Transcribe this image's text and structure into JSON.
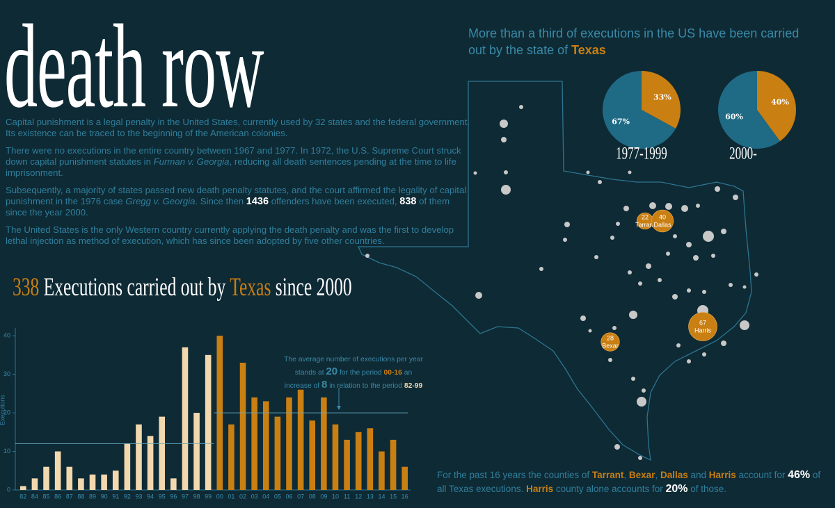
{
  "header": {
    "title": "death row"
  },
  "intro": [
    [
      {
        "t": "Capital punishment is a legal penalty in the United States, currently used by 32 states and the federal government. Its existence can be traced to the beginning of the American colonies.",
        "s": "plain"
      }
    ],
    [
      {
        "t": "There were no executions in the entire country between 1967 and 1977. In 1972, the U.S. Supreme Court struck down capital punishment statutes in ",
        "s": "plain"
      },
      {
        "t": "Furman v. Georgia",
        "s": "italic"
      },
      {
        "t": ", reducing all death sentences pending at the time to life imprisonment.",
        "s": "plain"
      }
    ],
    [
      {
        "t": "Subsequently, a majority of states passed new death penalty statutes, and the court affirmed the legality of capital punishment in the 1976 case ",
        "s": "plain"
      },
      {
        "t": "Gregg v. Georgia",
        "s": "italic"
      },
      {
        "t": ". Since then ",
        "s": "plain"
      },
      {
        "t": "1436",
        "s": "bold"
      },
      {
        "t": " offenders have been executed, ",
        "s": "plain"
      },
      {
        "t": "838",
        "s": "bold"
      },
      {
        "t": " of them since the year 2000.",
        "s": "plain"
      }
    ],
    [
      {
        "t": "The United States is the only Western country currently applying the death penalty and was the first to develop lethal injection as method of execution, which has since been adopted by five other countries.",
        "s": "plain"
      }
    ]
  ],
  "headline": [
    {
      "t": "338 ",
      "s": "orange"
    },
    {
      "t": "Executions carried out by ",
      "s": "white"
    },
    {
      "t": "Texas ",
      "s": "orange"
    },
    {
      "t": "since 2000",
      "s": "white"
    }
  ],
  "pie_title": [
    {
      "t": "More than a third of executions in the US have been carried out by the state of ",
      "s": "plain"
    },
    {
      "t": "Texas",
      "s": "orangebold"
    }
  ],
  "chart_data": [
    {
      "type": "bar",
      "y_label": "Executions",
      "categories": [
        "82",
        "84",
        "85",
        "86",
        "87",
        "88",
        "89",
        "90",
        "91",
        "92",
        "93",
        "94",
        "95",
        "96",
        "97",
        "98",
        "99",
        "00",
        "01",
        "02",
        "03",
        "04",
        "05",
        "06",
        "07",
        "08",
        "09",
        "10",
        "11",
        "12",
        "13",
        "14",
        "15",
        "16"
      ],
      "values": [
        1,
        3,
        6,
        10,
        6,
        3,
        4,
        4,
        5,
        12,
        17,
        14,
        19,
        3,
        37,
        20,
        35,
        40,
        17,
        33,
        24,
        23,
        19,
        24,
        26,
        18,
        24,
        17,
        13,
        15,
        16,
        10,
        13,
        6
      ],
      "colors": [
        "#f2d8ae",
        "#f2d8ae",
        "#f2d8ae",
        "#f2d8ae",
        "#f2d8ae",
        "#f2d8ae",
        "#f2d8ae",
        "#f2d8ae",
        "#f2d8ae",
        "#f2d8ae",
        "#f2d8ae",
        "#f2d8ae",
        "#f2d8ae",
        "#f2d8ae",
        "#f2d8ae",
        "#f2d8ae",
        "#f2d8ae",
        "#c97f12",
        "#c97f12",
        "#c97f12",
        "#c97f12",
        "#c97f12",
        "#c97f12",
        "#c97f12",
        "#c97f12",
        "#c97f12",
        "#c97f12",
        "#c97f12",
        "#c97f12",
        "#c97f12",
        "#c97f12",
        "#c97f12",
        "#c97f12",
        "#c97f12"
      ],
      "ylim": [
        0,
        42
      ],
      "yticks": [
        0,
        10,
        20,
        30,
        40
      ],
      "reference_lines": [
        12,
        20
      ],
      "annotation": [
        {
          "t": "The average number of executions per year stands at ",
          "s": "plain"
        },
        {
          "t": "20",
          "s": "big"
        },
        {
          "t": " for the period ",
          "s": "plain"
        },
        {
          "t": "00-16",
          "s": "orangebold"
        },
        {
          "t": " an increase of ",
          "s": "plain"
        },
        {
          "t": "8",
          "s": "big"
        },
        {
          "t": " in relation to the period ",
          "s": "plain"
        },
        {
          "t": "82-99",
          "s": "lightbold"
        }
      ]
    },
    {
      "type": "pie",
      "title": "1977-1999",
      "values": [
        33,
        67
      ],
      "value_labels": [
        "33%",
        "67%"
      ],
      "colors": [
        "#c97f12",
        "#1f6a84"
      ]
    },
    {
      "type": "pie",
      "title": "2000-",
      "values": [
        40,
        60
      ],
      "value_labels": [
        "40%",
        "60%"
      ],
      "colors": [
        "#c97f12",
        "#1f6a84"
      ]
    }
  ],
  "map": {
    "counties": [
      {
        "name": "Tarrant",
        "value": 22
      },
      {
        "name": "Dallas",
        "value": 40
      },
      {
        "name": "Bexar",
        "value": 28
      },
      {
        "name": "Harris",
        "value": 67
      }
    ],
    "color": "#c97f12"
  },
  "footer": [
    {
      "t": "For the past 16 years the counties of ",
      "s": "plain"
    },
    {
      "t": "Tarrant",
      "s": "orangebold"
    },
    {
      "t": ", ",
      "s": "plain"
    },
    {
      "t": "Bexar",
      "s": "orangebold"
    },
    {
      "t": ", ",
      "s": "plain"
    },
    {
      "t": "Dallas",
      "s": "orangebold"
    },
    {
      "t": " and ",
      "s": "plain"
    },
    {
      "t": "Harris",
      "s": "orangebold"
    },
    {
      "t": " account for ",
      "s": "plain"
    },
    {
      "t": "46%",
      "s": "bigwhite"
    },
    {
      "t": " of all Texas executions. ",
      "s": "plain"
    },
    {
      "t": "Harris",
      "s": "orangebold"
    },
    {
      "t": " county alone accounts for ",
      "s": "plain"
    },
    {
      "t": "20%",
      "s": "bigwhite"
    },
    {
      "t": " of those.",
      "s": "plain"
    }
  ]
}
